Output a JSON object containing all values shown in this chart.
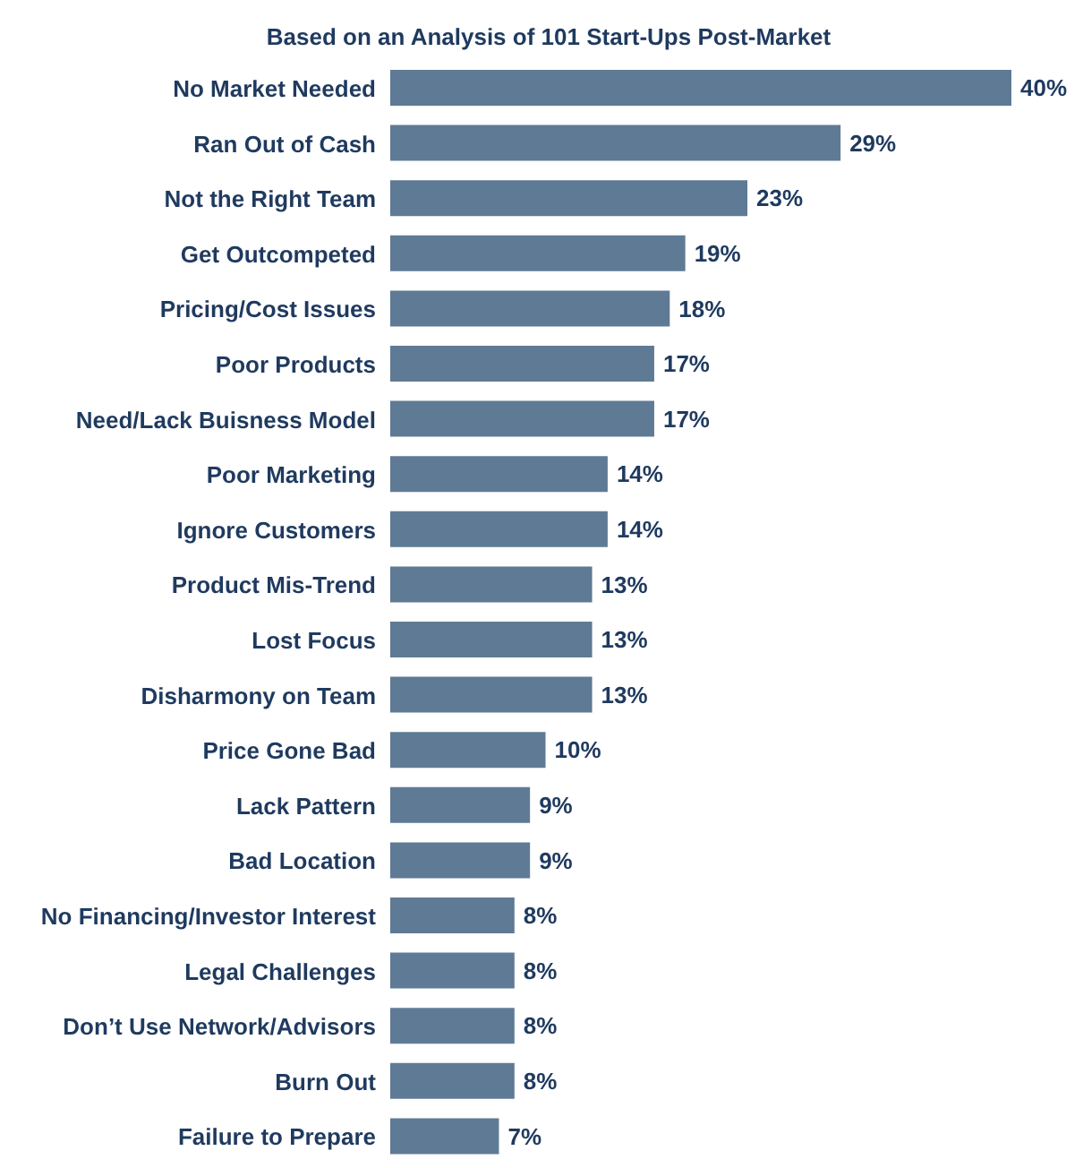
{
  "chart_data": {
    "type": "bar",
    "orientation": "horizontal",
    "title": "Based on an Analysis of 101 Start-Ups Post-Market",
    "categories": [
      "No Market Needed",
      "Ran Out of Cash",
      "Not the Right Team",
      "Get Outcompeted",
      "Pricing/Cost Issues",
      "Poor Products",
      "Need/Lack Buisness Model",
      "Poor Marketing",
      "Ignore Customers",
      "Product Mis-Trend",
      "Lost Focus",
      "Disharmony on Team",
      "Price Gone Bad",
      "Lack Pattern",
      "Bad Location",
      "No Financing/Investor Interest",
      "Legal Challenges",
      "Don’t Use Network/Advisors",
      "Burn Out",
      "Failure to Prepare"
    ],
    "values": [
      40,
      29,
      23,
      19,
      18,
      17,
      17,
      14,
      14,
      13,
      13,
      13,
      10,
      9,
      9,
      8,
      8,
      8,
      8,
      7
    ],
    "value_labels": [
      "40%",
      "29%",
      "23%",
      "19%",
      "18%",
      "17%",
      "17%",
      "14%",
      "14%",
      "13%",
      "13%",
      "13%",
      "10%",
      "9%",
      "9%",
      "8%",
      "8%",
      "8%",
      "8%",
      "7%"
    ],
    "color": "#5f7a94",
    "grid": false,
    "legend": false
  }
}
